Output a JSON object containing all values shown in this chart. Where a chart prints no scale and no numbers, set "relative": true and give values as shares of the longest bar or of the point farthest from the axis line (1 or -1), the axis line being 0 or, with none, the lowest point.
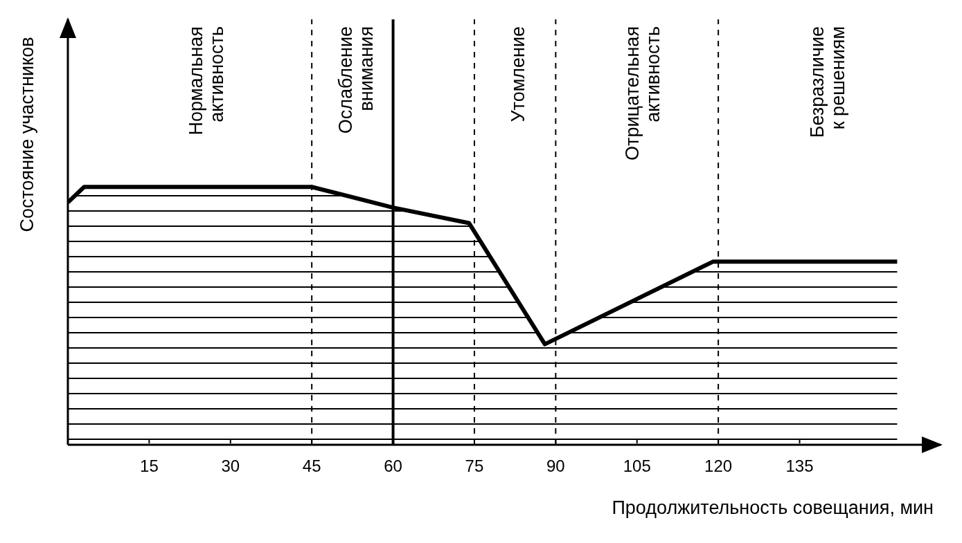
{
  "chart_data": {
    "type": "area",
    "relative": true,
    "xlabel": "Продолжительность совещания, мин",
    "ylabel": "Состояние участников",
    "x": [
      0,
      3,
      45,
      60,
      74,
      88,
      119,
      153
    ],
    "series": [
      {
        "color": "#000000",
        "values": [
          0.94,
          1,
          1,
          0.92,
          0.86,
          0.39,
          0.71,
          0.71
        ]
      }
    ],
    "xlim": [
      0,
      161
    ],
    "xticks": [
      15,
      30,
      45,
      60,
      75,
      90,
      105,
      120,
      135
    ],
    "ref_lines": [
      {
        "axis": "x",
        "value": 45,
        "line_style": "dashed"
      },
      {
        "axis": "x",
        "value": 60,
        "line_style": "solid"
      },
      {
        "axis": "x",
        "value": 75,
        "line_style": "dashed"
      },
      {
        "axis": "x",
        "value": 90,
        "line_style": "dashed"
      },
      {
        "axis": "x",
        "value": 120,
        "line_style": "dashed"
      }
    ],
    "annotations": [
      "Нормальная активность",
      "Ослабление внимания",
      "Утомление",
      "Отрицательная активность",
      "Безразличие к решениям"
    ],
    "grid": false,
    "legend": false
  }
}
